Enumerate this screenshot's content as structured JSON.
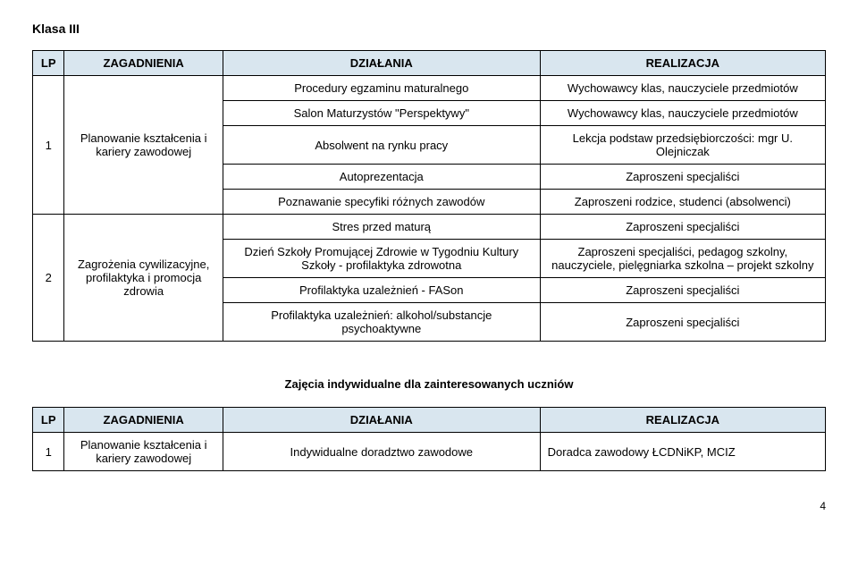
{
  "doc_title": "Klasa III",
  "header": {
    "lp": "LP",
    "zag": "ZAGADNIENIA",
    "dz": "DZIAŁANIA",
    "re": "REALIZACJA"
  },
  "main_rows": [
    {
      "dz": "Procedury egzaminu maturalnego",
      "re": "Wychowawcy klas, nauczyciele przedmiotów"
    },
    {
      "dz": "Salon Maturzystów \"Perspektywy\"",
      "re": "Wychowawcy klas, nauczyciele przedmiotów"
    },
    {
      "dz": "Absolwent na rynku pracy",
      "re": "Lekcja podstaw przedsiębiorczości:\nmgr U. Olejniczak"
    },
    {
      "dz": "Autoprezentacja",
      "re": "Zaproszeni specjaliści"
    },
    {
      "dz": "Poznawanie specyfiki różnych zawodów",
      "re": "Zaproszeni rodzice, studenci (absolwenci)"
    },
    {
      "dz": "Stres przed maturą",
      "re": "Zaproszeni specjaliści"
    },
    {
      "dz": "Dzień Szkoły Promującej Zdrowie w Tygodniu Kultury Szkoły - profilaktyka zdrowotna",
      "re": "Zaproszeni specjaliści,\npedagog szkolny, nauczyciele, pielęgniarka szkolna – projekt szkolny"
    },
    {
      "dz": "Profilaktyka uzależnień - FASon",
      "re": "Zaproszeni specjaliści"
    },
    {
      "dz": "Profilaktyka uzależnień: alkohol/substancje psychoaktywne",
      "re": "Zaproszeni specjaliści"
    }
  ],
  "groups": [
    {
      "lp": "1",
      "zag": "Planowanie kształcenia i kariery zawodowej"
    },
    {
      "lp": "2",
      "zag": "Zagrożenia cywilizacyjne, profilaktyka i promocja zdrowia"
    }
  ],
  "section2_title": "Zajęcia indywidualne dla zainteresowanych uczniów",
  "table2_row": {
    "lp": "1",
    "zag": "Planowanie kształcenia i kariery zawodowej",
    "dz": "Indywidualne doradztwo zawodowe",
    "re": "Doradca zawodowy ŁCDNiKP, MCIZ"
  },
  "page_num": "4",
  "colors": {
    "header_bg": "#d9e6ef",
    "border": "#000000",
    "text": "#000000",
    "page_bg": "#ffffff"
  }
}
